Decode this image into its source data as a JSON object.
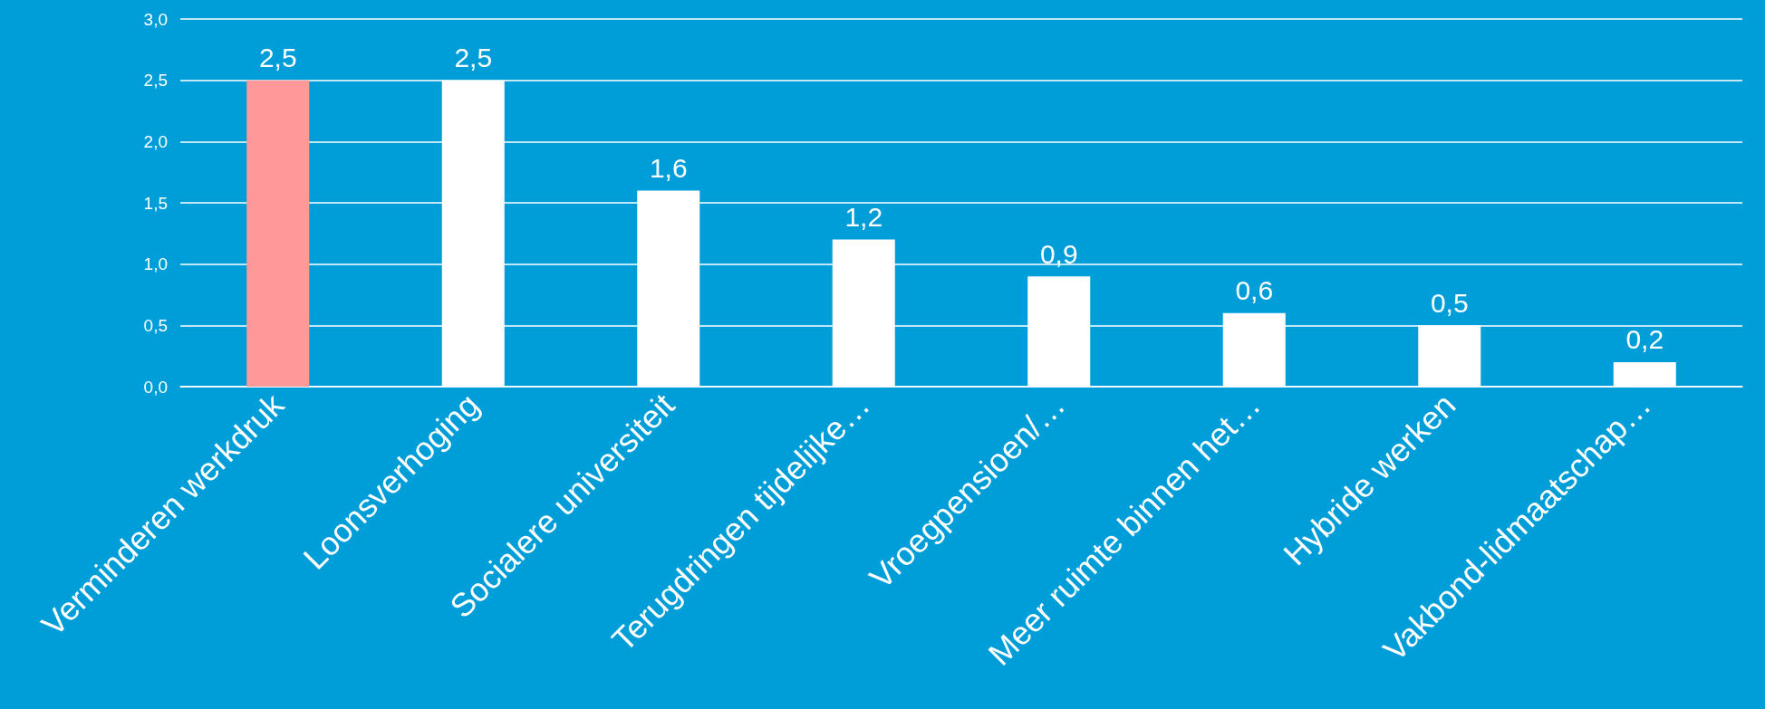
{
  "chart_data": {
    "type": "bar",
    "categories": [
      "Verminderen werkdruk",
      "Loonsverhoging",
      "Socialere universiteit",
      "Terugdringen tijdelijke…",
      "Vroegpensioen/…",
      "Meer ruimte binnen het…",
      "Hybride werken",
      "Vakbond-lidmaatschap…"
    ],
    "values": [
      2.5,
      2.5,
      1.6,
      1.2,
      0.9,
      0.6,
      0.5,
      0.2
    ],
    "colors": [
      "#ff9999",
      "#ffffff",
      "#ffffff",
      "#ffffff",
      "#ffffff",
      "#ffffff",
      "#ffffff",
      "#ffffff"
    ],
    "value_labels": [
      "2,5",
      "2,5",
      "1,6",
      "1,2",
      "0,9",
      "0,6",
      "0,5",
      "0,2"
    ],
    "ylim": [
      0,
      3
    ],
    "yticks": [
      {
        "value": 0,
        "label": "0,0"
      },
      {
        "value": 0.5,
        "label": "0,5"
      },
      {
        "value": 1,
        "label": "1,0"
      },
      {
        "value": 1.5,
        "label": "1,5"
      },
      {
        "value": 2,
        "label": "2,0"
      },
      {
        "value": 2.5,
        "label": "2,5"
      },
      {
        "value": 3,
        "label": "3,0"
      }
    ],
    "grid": "y"
  }
}
